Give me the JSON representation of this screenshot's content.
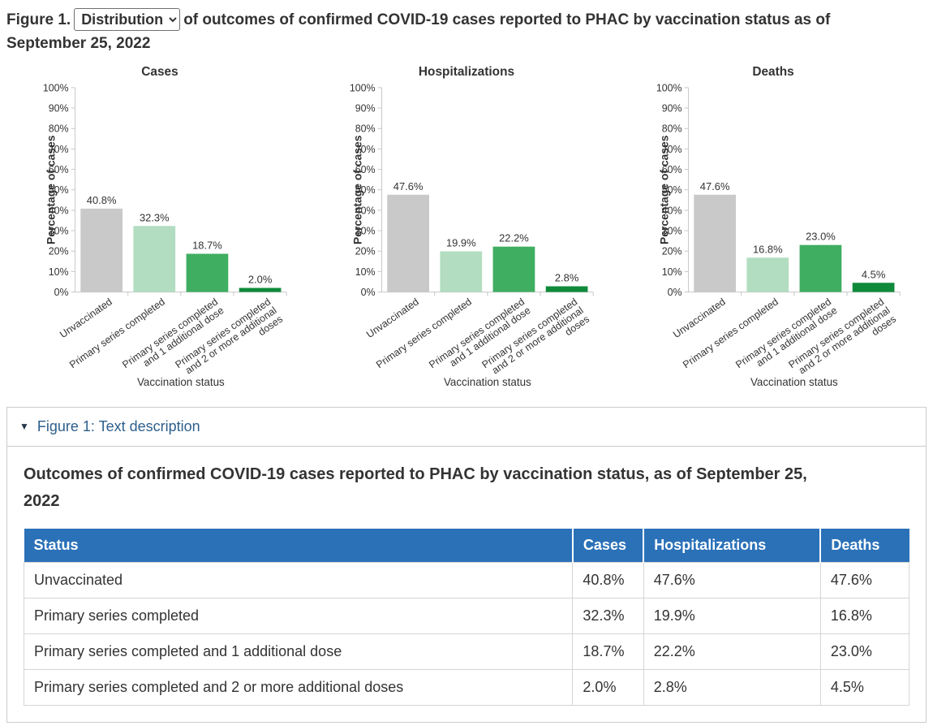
{
  "colors": {
    "accent_blue": "#2b71b8",
    "summary_blue": "#2d5f8c",
    "triangle_navy": "#26374a",
    "text_dark": "#333333",
    "border_gray": "#cccccc"
  },
  "header": {
    "figure_label": "Figure 1.",
    "dropdown": {
      "selected": "Distribution",
      "options": [
        "Distribution"
      ]
    },
    "title_rest": "of outcomes of confirmed COVID-19 cases reported to PHAC by vaccination status as of September 25, 2022"
  },
  "chart_data": {
    "type": "bar",
    "categories": [
      "Unvaccinated",
      "Primary series completed",
      "Primary series completed and 1 additional dose",
      "Primary series completed and 2 or more additional doses"
    ],
    "tick_labels": [
      [
        "Unvaccinated"
      ],
      [
        "Primary series completed"
      ],
      [
        "Primary series completed",
        "and 1 additional dose"
      ],
      [
        "Primary series completed",
        "and 2 or more additional",
        "doses"
      ]
    ],
    "series": [
      {
        "name": "Cases",
        "values": [
          40.8,
          32.3,
          18.7,
          2.0
        ]
      },
      {
        "name": "Hospitalizations",
        "values": [
          47.6,
          19.9,
          22.2,
          2.8
        ]
      },
      {
        "name": "Deaths",
        "values": [
          47.6,
          16.8,
          23.0,
          4.5
        ]
      }
    ],
    "xlabel": "Vaccination status",
    "ylabel": "Percentage of cases",
    "ylim": [
      0,
      100
    ],
    "ytick_step": 10,
    "grid": false,
    "legend": "none",
    "value_suffix": "%",
    "bar_colors": [
      "#c9c9c9",
      "#b2ddc0",
      "#3fae61",
      "#0f8a3a"
    ],
    "axis_color": "#c8c8c8",
    "label_color": "#333333"
  },
  "details": {
    "summary_label": "Figure 1: Text description",
    "triangle_icon": "▼",
    "heading": "Outcomes of confirmed COVID-19 cases reported to PHAC by vaccination status, as of September 25, 2022",
    "table": {
      "columns": [
        "Status",
        "Cases",
        "Hospitalizations",
        "Deaths"
      ],
      "rows": [
        [
          "Unvaccinated",
          "40.8%",
          "47.6%",
          "47.6%"
        ],
        [
          "Primary series completed",
          "32.3%",
          "19.9%",
          "16.8%"
        ],
        [
          "Primary series completed and 1 additional dose",
          "18.7%",
          "22.2%",
          "23.0%"
        ],
        [
          "Primary series completed and 2 or more additional doses",
          "2.0%",
          "2.8%",
          "4.5%"
        ]
      ]
    }
  }
}
